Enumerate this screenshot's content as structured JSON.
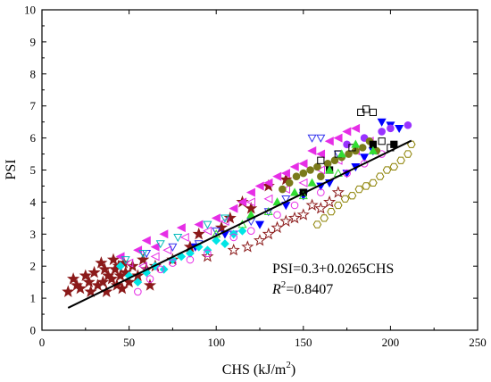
{
  "chart_data": {
    "type": "scatter",
    "title": "",
    "xlabel": "CHS (kJ/m",
    "xlabel_sup": "2",
    "xlabel_close": ")",
    "ylabel": "PSI",
    "xlim": [
      0,
      250
    ],
    "ylim": [
      0,
      10
    ],
    "xticks": [
      0,
      50,
      100,
      150,
      200,
      250
    ],
    "yticks": [
      0,
      1,
      2,
      3,
      4,
      5,
      6,
      7,
      8,
      9,
      10
    ],
    "grid": false,
    "fit_line": {
      "intercept": 0.3,
      "slope": 0.0265,
      "x_range": [
        15,
        212
      ]
    },
    "annotation_equation": "PSI=0.3+0.0265CHS",
    "annotation_r_symbol": "R",
    "annotation_r_sup": "2",
    "annotation_r_value": "=0.8407",
    "series": [
      {
        "marker": "star",
        "filled": true,
        "color": "#8b1a1a",
        "points": [
          [
            15,
            1.2
          ],
          [
            18,
            1.6
          ],
          [
            20,
            1.4
          ],
          [
            22,
            1.3
          ],
          [
            25,
            1.7
          ],
          [
            27,
            1.5
          ],
          [
            28,
            1.2
          ],
          [
            30,
            1.8
          ],
          [
            32,
            1.4
          ],
          [
            34,
            2.1
          ],
          [
            35,
            1.5
          ],
          [
            36,
            1.9
          ],
          [
            37,
            1.2
          ],
          [
            38,
            1.7
          ],
          [
            40,
            1.6
          ],
          [
            41,
            2.2
          ],
          [
            42,
            1.9
          ],
          [
            43,
            1.4
          ],
          [
            44,
            2.0
          ],
          [
            45,
            1.7
          ],
          [
            46,
            1.3
          ],
          [
            47,
            2.1
          ],
          [
            48,
            1.8
          ],
          [
            50,
            1.5
          ],
          [
            52,
            2.0
          ],
          [
            55,
            1.7
          ],
          [
            58,
            2.2
          ],
          [
            60,
            1.9
          ],
          [
            62,
            1.4
          ],
          [
            65,
            2.0
          ],
          [
            75,
            2.2
          ],
          [
            85,
            2.6
          ],
          [
            90,
            3.0
          ],
          [
            103,
            3.2
          ],
          [
            108,
            3.5
          ],
          [
            115,
            4.0
          ],
          [
            120,
            3.8
          ],
          [
            130,
            4.5
          ],
          [
            140,
            4.7
          ]
        ]
      },
      {
        "marker": "star",
        "filled": false,
        "color": "#8b1a1a",
        "points": [
          [
            95,
            2.3
          ],
          [
            110,
            2.5
          ],
          [
            118,
            2.6
          ],
          [
            125,
            2.8
          ],
          [
            130,
            3.0
          ],
          [
            135,
            3.2
          ],
          [
            140,
            3.4
          ],
          [
            145,
            3.5
          ],
          [
            150,
            3.6
          ],
          [
            155,
            3.9
          ],
          [
            160,
            3.8
          ],
          [
            165,
            4.0
          ],
          [
            170,
            4.3
          ]
        ]
      },
      {
        "marker": "triangle-left",
        "filled": true,
        "color": "#e62ee6",
        "points": [
          [
            45,
            2.3
          ],
          [
            55,
            2.5
          ],
          [
            60,
            2.8
          ],
          [
            65,
            2.6
          ],
          [
            70,
            3.0
          ],
          [
            80,
            3.2
          ],
          [
            90,
            3.3
          ],
          [
            100,
            3.5
          ],
          [
            110,
            3.8
          ],
          [
            115,
            4.0
          ],
          [
            120,
            4.3
          ],
          [
            125,
            4.5
          ],
          [
            130,
            4.6
          ],
          [
            135,
            4.8
          ],
          [
            140,
            4.9
          ],
          [
            145,
            5.1
          ],
          [
            150,
            5.2
          ],
          [
            155,
            5.6
          ],
          [
            160,
            5.5
          ],
          [
            165,
            5.9
          ],
          [
            170,
            6.0
          ],
          [
            175,
            6.2
          ],
          [
            180,
            6.3
          ]
        ]
      },
      {
        "marker": "triangle-left",
        "filled": false,
        "color": "#e62ee6",
        "points": [
          [
            50,
            2.1
          ],
          [
            58,
            2.0
          ],
          [
            65,
            2.3
          ],
          [
            72,
            2.5
          ],
          [
            82,
            2.9
          ],
          [
            95,
            3.1
          ],
          [
            105,
            3.4
          ],
          [
            120,
            4.0
          ],
          [
            130,
            4.1
          ],
          [
            140,
            4.4
          ],
          [
            150,
            4.6
          ],
          [
            160,
            5.0
          ],
          [
            170,
            5.3
          ],
          [
            180,
            5.6
          ],
          [
            188,
            5.9
          ]
        ]
      },
      {
        "marker": "triangle-down",
        "filled": true,
        "color": "#0000ff",
        "points": [
          [
            88,
            2.6
          ],
          [
            105,
            3.0
          ],
          [
            125,
            3.3
          ],
          [
            140,
            3.9
          ],
          [
            150,
            4.2
          ],
          [
            160,
            4.5
          ],
          [
            165,
            4.6
          ],
          [
            175,
            4.9
          ],
          [
            180,
            5.1
          ],
          [
            185,
            5.4
          ],
          [
            190,
            5.6
          ],
          [
            195,
            6.5
          ],
          [
            200,
            6.4
          ],
          [
            205,
            6.3
          ]
        ]
      },
      {
        "marker": "triangle-down",
        "filled": false,
        "color": "#3333ee",
        "points": [
          [
            60,
            2.4
          ],
          [
            75,
            2.6
          ],
          [
            90,
            2.7
          ],
          [
            100,
            3.1
          ],
          [
            110,
            3.0
          ],
          [
            120,
            3.4
          ],
          [
            130,
            3.7
          ],
          [
            140,
            4.1
          ],
          [
            150,
            4.3
          ],
          [
            155,
            6.0
          ],
          [
            160,
            6.0
          ],
          [
            170,
            5.5
          ]
        ]
      },
      {
        "marker": "diamond",
        "filled": true,
        "color": "#00e5e5",
        "points": [
          [
            45,
            2.0
          ],
          [
            50,
            1.7
          ],
          [
            55,
            1.5
          ],
          [
            60,
            1.8
          ],
          [
            65,
            2.0
          ],
          [
            70,
            1.9
          ],
          [
            75,
            2.2
          ],
          [
            80,
            2.3
          ],
          [
            85,
            2.4
          ],
          [
            90,
            2.6
          ],
          [
            95,
            2.5
          ],
          [
            100,
            2.8
          ],
          [
            105,
            2.7
          ],
          [
            110,
            3.0
          ],
          [
            115,
            3.1
          ]
        ]
      },
      {
        "marker": "triangle-down",
        "filled": false,
        "color": "#00bbbb",
        "points": [
          [
            48,
            2.2
          ],
          [
            58,
            2.4
          ],
          [
            68,
            2.7
          ],
          [
            78,
            2.9
          ],
          [
            95,
            3.3
          ],
          [
            105,
            3.5
          ]
        ]
      },
      {
        "marker": "circle",
        "filled": false,
        "color": "#e62ee6",
        "points": [
          [
            55,
            1.2
          ],
          [
            62,
            1.6
          ],
          [
            68,
            1.9
          ],
          [
            75,
            2.1
          ],
          [
            85,
            2.2
          ],
          [
            95,
            2.4
          ],
          [
            110,
            2.9
          ],
          [
            120,
            3.1
          ],
          [
            135,
            3.6
          ],
          [
            145,
            3.9
          ],
          [
            160,
            4.3
          ],
          [
            175,
            4.9
          ],
          [
            185,
            5.2
          ],
          [
            195,
            5.5
          ]
        ]
      },
      {
        "marker": "circle",
        "filled": true,
        "color": "#9933ff",
        "points": [
          [
            175,
            5.8
          ],
          [
            185,
            6.0
          ],
          [
            195,
            6.2
          ],
          [
            200,
            6.3
          ],
          [
            210,
            6.4
          ]
        ]
      },
      {
        "marker": "hexagon",
        "filled": false,
        "color": "#8b8000",
        "points": [
          [
            158,
            3.3
          ],
          [
            162,
            3.5
          ],
          [
            166,
            3.7
          ],
          [
            170,
            3.9
          ],
          [
            174,
            4.1
          ],
          [
            178,
            4.2
          ],
          [
            182,
            4.4
          ],
          [
            186,
            4.5
          ],
          [
            190,
            4.6
          ],
          [
            194,
            4.8
          ],
          [
            198,
            5.0
          ],
          [
            202,
            5.1
          ],
          [
            206,
            5.3
          ],
          [
            210,
            5.5
          ],
          [
            212,
            5.8
          ]
        ]
      },
      {
        "marker": "circle",
        "filled": true,
        "color": "#7a7a1a",
        "points": [
          [
            138,
            4.4
          ],
          [
            142,
            4.6
          ],
          [
            146,
            4.8
          ],
          [
            150,
            4.9
          ],
          [
            154,
            5.0
          ],
          [
            158,
            5.1
          ],
          [
            160,
            4.8
          ],
          [
            164,
            5.2
          ],
          [
            168,
            5.3
          ],
          [
            172,
            5.4
          ],
          [
            176,
            5.5
          ],
          [
            180,
            5.6
          ],
          [
            184,
            5.7
          ],
          [
            188,
            5.9
          ],
          [
            192,
            5.6
          ]
        ]
      },
      {
        "marker": "square",
        "filled": false,
        "color": "#000000",
        "points": [
          [
            160,
            5.3
          ],
          [
            170,
            5.5
          ],
          [
            178,
            5.7
          ],
          [
            183,
            6.8
          ],
          [
            186,
            6.9
          ],
          [
            190,
            6.8
          ],
          [
            195,
            5.9
          ],
          [
            200,
            5.7
          ]
        ]
      },
      {
        "marker": "square",
        "filled": true,
        "color": "#000000",
        "points": [
          [
            150,
            4.3
          ],
          [
            165,
            5.0
          ],
          [
            190,
            5.8
          ],
          [
            202,
            5.8
          ]
        ]
      },
      {
        "marker": "triangle-up",
        "filled": true,
        "color": "#33dd33",
        "points": [
          [
            120,
            3.6
          ],
          [
            135,
            4.0
          ],
          [
            145,
            4.3
          ],
          [
            155,
            4.6
          ],
          [
            165,
            5.0
          ],
          [
            172,
            5.5
          ],
          [
            180,
            5.8
          ],
          [
            190,
            5.6
          ]
        ]
      },
      {
        "marker": "triangle-up",
        "filled": false,
        "color": "#33dd33",
        "points": [
          [
            100,
            3.0
          ],
          [
            115,
            3.3
          ],
          [
            130,
            3.7
          ],
          [
            150,
            4.2
          ],
          [
            170,
            4.9
          ]
        ]
      }
    ]
  }
}
